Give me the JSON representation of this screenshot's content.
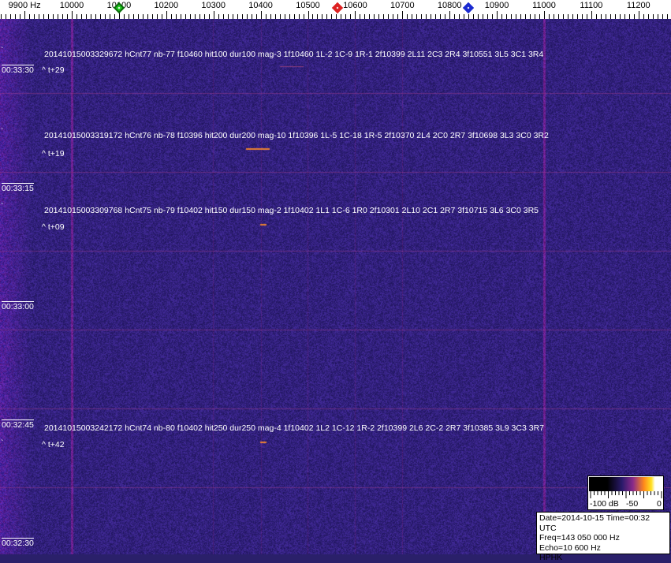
{
  "axis": {
    "ticks": [
      {
        "freq": 9900,
        "label": "9900 Hz"
      },
      {
        "freq": 10000,
        "label": "10000"
      },
      {
        "freq": 10100,
        "label": "10100"
      },
      {
        "freq": 10200,
        "label": "10200"
      },
      {
        "freq": 10300,
        "label": "10300"
      },
      {
        "freq": 10400,
        "label": "10400"
      },
      {
        "freq": 10500,
        "label": "10500"
      },
      {
        "freq": 10600,
        "label": "10600"
      },
      {
        "freq": 10700,
        "label": "10700"
      },
      {
        "freq": 10800,
        "label": "10800"
      },
      {
        "freq": 10900,
        "label": "10900"
      },
      {
        "freq": 11000,
        "label": "11000"
      },
      {
        "freq": 11100,
        "label": "11100"
      },
      {
        "freq": 11200,
        "label": "11200"
      }
    ],
    "markers": [
      {
        "freq": 10100,
        "color": "#22cc22"
      },
      {
        "freq": 10563,
        "color": "#dd2222"
      },
      {
        "freq": 10840,
        "color": "#1a2ad0"
      }
    ]
  },
  "detections": [
    {
      "text": "20141015003329672 hCnt77 nb-77 f10460 hit100 dur100 mag-3 1f10460 1L-2 1C-9 1R-1 2f10399 2L11 2C3 2R4 3f10551 3L5 3C1 3R4",
      "offset": "^ t+29"
    },
    {
      "text": "20141015003319172 hCnt76 nb-78 f10396 hit200 dur200 mag-10 1f10396 1L-5 1C-18 1R-5 2f10370 2L4 2C0 2R7 3f10698 3L3 3C0 3R2",
      "offset": "^ t+19"
    },
    {
      "text": "20141015003309768 hCnt75 nb-79 f10402 hit150 dur150 mag-2 1f10402 1L1 1C-6 1R0 2f10301 2L10 2C1 2R7 3f10715 3L6 3C0 3R5",
      "offset": "^ t+09"
    },
    {
      "text": "20141015003242172 hCnt74 nb-80 f10402 hit250 dur250 mag-4 1f10402 1L2 1C-12 1R-2 2f10399 2L6 2C-2 2R7 3f10385 3L9 3C3 3R7",
      "offset": "^ t+42"
    }
  ],
  "times": [
    "00:33:30",
    "00:33:15",
    "00:33:00",
    "00:32:45",
    "00:32:30"
  ],
  "colorbar": {
    "labels": [
      "-100 dB",
      "-50",
      "0"
    ]
  },
  "info": {
    "date": "Date=2014-10-15 Time=00:32 UTC",
    "freq": "Freq=143 050 000 Hz",
    "echo": "Echo=10 600 Hz",
    "station": "HPHK"
  }
}
